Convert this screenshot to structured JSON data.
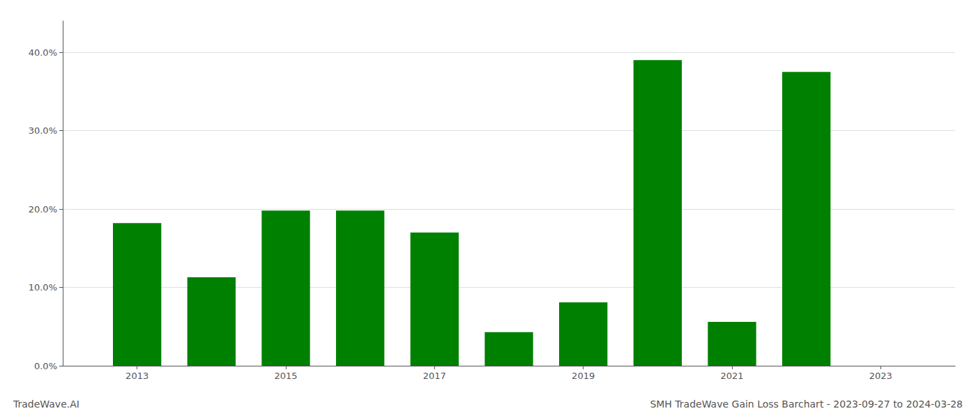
{
  "chart_data": {
    "type": "bar",
    "title": "SMH TradeWave Gain Loss Barchart - 2023-09-27 to 2024-03-28",
    "annotations": [
      "TradeWave.AI"
    ],
    "x": [
      2013,
      2014,
      2015,
      2016,
      2017,
      2018,
      2019,
      2020,
      2021,
      2022,
      2023
    ],
    "values": [
      0.182,
      0.113,
      0.198,
      0.198,
      0.17,
      0.043,
      0.081,
      0.39,
      0.056,
      0.375,
      0.0
    ],
    "color": "#008000",
    "xlim": [
      2012.0,
      2024.0
    ],
    "xticks": [
      2013,
      2015,
      2017,
      2019,
      2021,
      2023
    ],
    "ylim": [
      0,
      0.44
    ],
    "yticks": [
      {
        "value": 0.0,
        "label": "0.0%"
      },
      {
        "value": 0.1,
        "label": "10.0%"
      },
      {
        "value": 0.2,
        "label": "20.0%"
      },
      {
        "value": 0.3,
        "label": "30.0%"
      },
      {
        "value": 0.4,
        "label": "40.0%"
      }
    ],
    "grid": true
  }
}
